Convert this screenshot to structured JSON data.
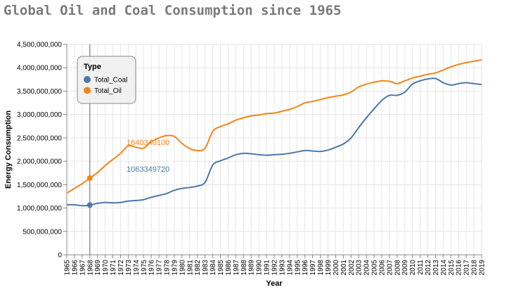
{
  "chart_data": {
    "type": "line",
    "title": "Global Oil and Coal Consumption since 1965",
    "xlabel": "Year",
    "ylabel": "Energy Consumption",
    "x": [
      1965,
      1966,
      1967,
      1968,
      1969,
      1970,
      1971,
      1972,
      1973,
      1974,
      1975,
      1976,
      1977,
      1978,
      1979,
      1980,
      1981,
      1982,
      1983,
      1984,
      1985,
      1986,
      1987,
      1988,
      1989,
      1990,
      1991,
      1992,
      1993,
      1994,
      1995,
      1996,
      1997,
      1998,
      1999,
      2000,
      2001,
      2002,
      2003,
      2004,
      2005,
      2006,
      2007,
      2008,
      2009,
      2010,
      2011,
      2012,
      2013,
      2014,
      2015,
      2016,
      2017,
      2018,
      2019
    ],
    "ylim": [
      0,
      4500000000
    ],
    "yticks": [
      0,
      500000000,
      1000000000,
      1500000000,
      2000000000,
      2500000000,
      3000000000,
      3500000000,
      4000000000,
      4500000000
    ],
    "ytick_labels": [
      "0",
      "500,000,000",
      "1,000,000,000",
      "1,500,000,000",
      "2,000,000,000",
      "2,500,000,000",
      "3,000,000,000",
      "3,500,000,000",
      "4,000,000,000",
      "4,500,000,000"
    ],
    "grid": true,
    "legend": {
      "title": "Type",
      "placement": "top-left"
    },
    "series": [
      {
        "name": "Total_Coal",
        "color": "#4c78a8",
        "values": [
          1070000000,
          1070000000,
          1050000000,
          1063349720,
          1100000000,
          1120000000,
          1110000000,
          1120000000,
          1150000000,
          1160000000,
          1180000000,
          1230000000,
          1270000000,
          1310000000,
          1380000000,
          1420000000,
          1440000000,
          1470000000,
          1550000000,
          1920000000,
          2010000000,
          2070000000,
          2140000000,
          2170000000,
          2160000000,
          2140000000,
          2130000000,
          2140000000,
          2150000000,
          2170000000,
          2200000000,
          2230000000,
          2220000000,
          2210000000,
          2240000000,
          2300000000,
          2370000000,
          2500000000,
          2720000000,
          2930000000,
          3120000000,
          3300000000,
          3410000000,
          3410000000,
          3480000000,
          3650000000,
          3720000000,
          3760000000,
          3770000000,
          3680000000,
          3630000000,
          3660000000,
          3680000000,
          3660000000,
          3640000000
        ]
      },
      {
        "name": "Total_Oil",
        "color": "#f58518",
        "values": [
          1320000000,
          1420000000,
          1520000000,
          1640340100,
          1760000000,
          1910000000,
          2040000000,
          2170000000,
          2330000000,
          2300000000,
          2280000000,
          2420000000,
          2500000000,
          2550000000,
          2530000000,
          2380000000,
          2270000000,
          2230000000,
          2280000000,
          2640000000,
          2740000000,
          2800000000,
          2880000000,
          2930000000,
          2970000000,
          2990000000,
          3020000000,
          3030000000,
          3070000000,
          3110000000,
          3170000000,
          3250000000,
          3280000000,
          3320000000,
          3360000000,
          3390000000,
          3420000000,
          3480000000,
          3590000000,
          3650000000,
          3690000000,
          3720000000,
          3710000000,
          3660000000,
          3720000000,
          3780000000,
          3820000000,
          3860000000,
          3890000000,
          3950000000,
          4020000000,
          4070000000,
          4110000000,
          4140000000,
          4170000000
        ]
      }
    ],
    "hover": {
      "year": 1968,
      "labels": [
        {
          "series": "Total_Coal",
          "text": "1063349720"
        },
        {
          "series": "Total_Oil",
          "text": "1640340100"
        }
      ]
    }
  }
}
